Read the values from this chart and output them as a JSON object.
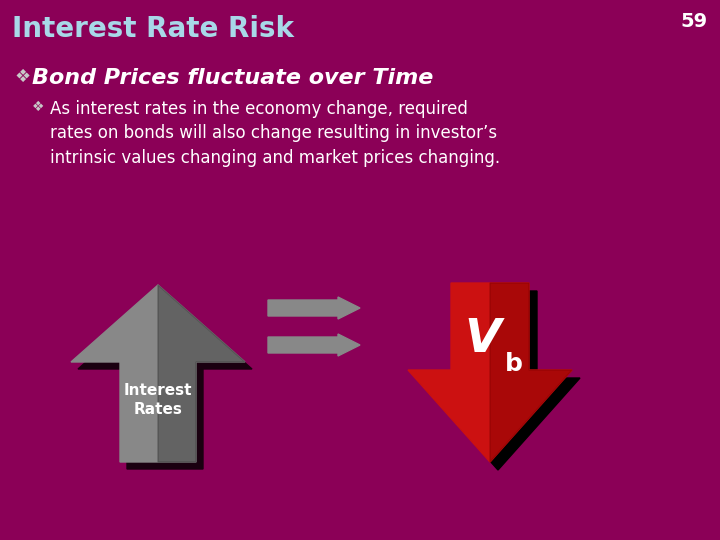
{
  "background_color": "#8B0057",
  "title": "Interest Rate Risk",
  "title_color": "#A8D8E8",
  "title_fontsize": 20,
  "page_number": "59",
  "page_number_color": "#FFFFFF",
  "bullet1_text": "Bond Prices fluctuate over Time",
  "bullet1_color": "#FFFFFF",
  "bullet1_fontsize": 16,
  "bullet2_color": "#FFFFFF",
  "bullet2_fontsize": 12,
  "bullet2_text": "As interest rates in the economy change, required\nrates on bonds will also change resulting in investor’s\nintrinsic values changing and market prices changing.",
  "interest_rates_label": "Interest\nRates",
  "vb_label": "V",
  "vb_sub": "b",
  "up_arrow_color": "#888888",
  "up_arrow_dark": "#404040",
  "down_arrow_color": "#CC1111",
  "down_arrow_dark": "#880000",
  "horiz_arrow_color": "#888888",
  "shadow_color": "#1A0010"
}
